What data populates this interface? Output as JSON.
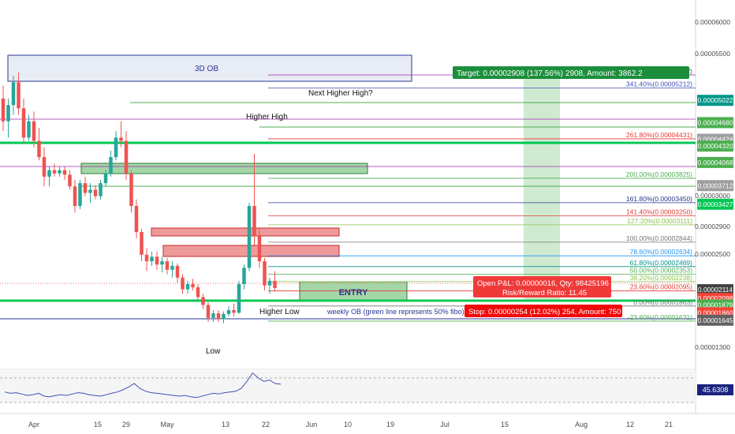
{
  "chart_data": {
    "type": "candlestick",
    "main_y_ticks": [
      "0.00006000",
      "0.00005500",
      "0.00003000",
      "0.00002900",
      "0.00002500",
      "0.00001300"
    ],
    "x_ticks": [
      "Apr",
      "15",
      "29",
      "May",
      "13",
      "22",
      "Jun",
      "10",
      "19",
      "Jul",
      "15",
      "Aug",
      "12",
      "21"
    ],
    "candles": [
      {
        "o": 5.05,
        "h": 5.25,
        "l": 4.55,
        "c": 4.7
      },
      {
        "o": 4.7,
        "h": 5.05,
        "l": 4.45,
        "c": 4.95
      },
      {
        "o": 4.95,
        "h": 5.4,
        "l": 4.8,
        "c": 5.3
      },
      {
        "o": 5.3,
        "h": 5.45,
        "l": 4.8,
        "c": 4.9
      },
      {
        "o": 4.9,
        "h": 5.05,
        "l": 4.35,
        "c": 4.45
      },
      {
        "o": 4.45,
        "h": 4.8,
        "l": 4.4,
        "c": 4.7
      },
      {
        "o": 4.7,
        "h": 4.85,
        "l": 4.3,
        "c": 4.4
      },
      {
        "o": 4.4,
        "h": 4.6,
        "l": 4.1,
        "c": 4.15
      },
      {
        "o": 4.15,
        "h": 4.3,
        "l": 3.7,
        "c": 3.85
      },
      {
        "o": 3.85,
        "h": 4.0,
        "l": 3.7,
        "c": 3.95
      },
      {
        "o": 3.95,
        "h": 4.05,
        "l": 3.85,
        "c": 3.9
      },
      {
        "o": 3.9,
        "h": 4.0,
        "l": 3.85,
        "c": 3.95
      },
      {
        "o": 3.95,
        "h": 4.0,
        "l": 3.8,
        "c": 3.88
      },
      {
        "o": 3.88,
        "h": 3.95,
        "l": 3.65,
        "c": 3.7
      },
      {
        "o": 3.7,
        "h": 3.8,
        "l": 3.3,
        "c": 3.4
      },
      {
        "o": 3.4,
        "h": 3.8,
        "l": 3.35,
        "c": 3.75
      },
      {
        "o": 3.75,
        "h": 3.85,
        "l": 3.55,
        "c": 3.6
      },
      {
        "o": 3.6,
        "h": 3.75,
        "l": 3.45,
        "c": 3.65
      },
      {
        "o": 3.65,
        "h": 3.72,
        "l": 3.5,
        "c": 3.55
      },
      {
        "o": 3.55,
        "h": 3.8,
        "l": 3.5,
        "c": 3.75
      },
      {
        "o": 3.75,
        "h": 3.95,
        "l": 3.7,
        "c": 3.9
      },
      {
        "o": 3.9,
        "h": 4.25,
        "l": 3.85,
        "c": 4.15
      },
      {
        "o": 4.15,
        "h": 4.55,
        "l": 4.1,
        "c": 4.45
      },
      {
        "o": 4.45,
        "h": 4.7,
        "l": 4.3,
        "c": 4.4
      },
      {
        "o": 4.4,
        "h": 4.55,
        "l": 3.8,
        "c": 3.9
      },
      {
        "o": 3.9,
        "h": 3.95,
        "l": 3.3,
        "c": 3.4
      },
      {
        "o": 3.4,
        "h": 3.5,
        "l": 2.9,
        "c": 3.0
      },
      {
        "o": 3.0,
        "h": 3.05,
        "l": 2.55,
        "c": 2.65
      },
      {
        "o": 2.65,
        "h": 2.75,
        "l": 2.4,
        "c": 2.55
      },
      {
        "o": 2.55,
        "h": 2.7,
        "l": 2.48,
        "c": 2.62
      },
      {
        "o": 2.62,
        "h": 2.7,
        "l": 2.42,
        "c": 2.5
      },
      {
        "o": 2.5,
        "h": 2.62,
        "l": 2.38,
        "c": 2.55
      },
      {
        "o": 2.55,
        "h": 2.6,
        "l": 2.35,
        "c": 2.42
      },
      {
        "o": 2.42,
        "h": 2.55,
        "l": 2.3,
        "c": 2.48
      },
      {
        "o": 2.48,
        "h": 2.52,
        "l": 2.22,
        "c": 2.3
      },
      {
        "o": 2.3,
        "h": 2.35,
        "l": 2.05,
        "c": 2.12
      },
      {
        "o": 2.12,
        "h": 2.25,
        "l": 2.05,
        "c": 2.2
      },
      {
        "o": 2.2,
        "h": 2.28,
        "l": 2.1,
        "c": 2.15
      },
      {
        "o": 2.15,
        "h": 2.2,
        "l": 1.95,
        "c": 2.0
      },
      {
        "o": 2.0,
        "h": 2.05,
        "l": 1.82,
        "c": 1.88
      },
      {
        "o": 1.88,
        "h": 1.92,
        "l": 1.62,
        "c": 1.68
      },
      {
        "o": 1.68,
        "h": 1.8,
        "l": 1.62,
        "c": 1.75
      },
      {
        "o": 1.75,
        "h": 1.8,
        "l": 1.62,
        "c": 1.66
      },
      {
        "o": 1.66,
        "h": 1.78,
        "l": 1.6,
        "c": 1.74
      },
      {
        "o": 1.74,
        "h": 1.86,
        "l": 1.7,
        "c": 1.8
      },
      {
        "o": 1.8,
        "h": 1.9,
        "l": 1.7,
        "c": 1.76
      },
      {
        "o": 1.76,
        "h": 2.25,
        "l": 1.74,
        "c": 2.2
      },
      {
        "o": 2.2,
        "h": 2.5,
        "l": 2.12,
        "c": 2.45
      },
      {
        "o": 2.45,
        "h": 3.45,
        "l": 2.4,
        "c": 3.4
      },
      {
        "o": 3.4,
        "h": 4.2,
        "l": 2.8,
        "c": 2.95
      },
      {
        "o": 2.95,
        "h": 3.05,
        "l": 2.45,
        "c": 2.55
      },
      {
        "o": 2.55,
        "h": 2.6,
        "l": 2.1,
        "c": 2.18
      },
      {
        "o": 2.18,
        "h": 2.3,
        "l": 2.05,
        "c": 2.25
      },
      {
        "o": 2.25,
        "h": 2.4,
        "l": 2.1,
        "c": 2.14
      }
    ],
    "fib_levels": [
      {
        "label": "361.80%(0.00005412)",
        "v": 5.412,
        "color": "#9c27b0"
      },
      {
        "label": "341.40%(0.00005212)",
        "v": 5.212,
        "color": "#3f51b5"
      },
      {
        "label": "261.80%(0.00004431)",
        "v": 4.431,
        "color": "#e53935"
      },
      {
        "label": "200.00%(0.00003825)",
        "v": 3.825,
        "color": "#4caf50"
      },
      {
        "label": "161.80%(0.00003450)",
        "v": 3.45,
        "color": "#283593"
      },
      {
        "label": "141.40%(0.00003250)",
        "v": 3.25,
        "color": "#e53935"
      },
      {
        "label": "127.20%(0.00003111)",
        "v": 3.111,
        "color": "#8bc34a"
      },
      {
        "label": "100.00%(0.00002844)",
        "v": 2.844,
        "color": "#757575"
      },
      {
        "label": "78.60%(0.00002634)",
        "v": 2.634,
        "color": "#2196f3"
      },
      {
        "label": "61.80%(0.00002469)",
        "v": 2.469,
        "color": "#009688"
      },
      {
        "label": "50.00%(0.00002353)",
        "v": 2.353,
        "color": "#4caf50"
      },
      {
        "label": "38.20%(0.00002238)",
        "v": 2.238,
        "color": "#8bc34a"
      },
      {
        "label": "23.60%(0.00002095)",
        "v": 2.095,
        "color": "#e53935"
      },
      {
        "label": "0.00%(0.00001863)",
        "v": 1.863,
        "color": "#757575"
      },
      {
        "label": "-23.60%(0.00001631)",
        "v": 1.631,
        "color": "#4caf50"
      }
    ],
    "price_tags": [
      {
        "text": "0.00005022",
        "v": 5.022,
        "bg": "#009688"
      },
      {
        "text": "0.00004680",
        "v": 4.68,
        "bg": "#4caf50"
      },
      {
        "text": "0.00004424",
        "v": 4.424,
        "bg": "#9e9e9e"
      },
      {
        "text": "0.00004320",
        "v": 4.32,
        "bg": "#4caf50"
      },
      {
        "text": "0.00004068",
        "v": 4.068,
        "bg": "#4caf50"
      },
      {
        "text": "0.00003712",
        "v": 3.712,
        "bg": "#9e9e9e"
      },
      {
        "text": "0.00003427",
        "v": 3.427,
        "bg": "#00c853"
      },
      {
        "text": "0.00002114",
        "v": 2.114,
        "bg": "#424242"
      },
      {
        "text": "0.00002098",
        "v": 1.98,
        "bg": "#f44336"
      },
      {
        "text": "0.00001879",
        "v": 1.879,
        "bg": "#4caf50"
      },
      {
        "text": "0.00001860",
        "v": 1.76,
        "bg": "#f44336"
      },
      {
        "text": "0.00001645",
        "v": 1.645,
        "bg": "#616161"
      }
    ],
    "annotations": {
      "ob_3d": "3D OB",
      "next_higher_high": "Next Higher High?",
      "higher_high": "Higher High",
      "higher_low": "Higher Low",
      "low": "Low",
      "entry": "ENTRY",
      "weekly_ob": "weekly OB (green line represents 50% fibo)",
      "target": "Target: 0.00002908 (137.56%) 2908, Amount: 3862.2",
      "open_pnl": "Open P&L: 0.00000016, Qty: 98425196",
      "risk_reward": "Risk/Reward Ratio: 11.45",
      "stop": "Stop: 0.00000254 (12.02%) 254, Amount: 750"
    },
    "indicator": {
      "value_label": "45.6308",
      "values": [
        35,
        33,
        34,
        32,
        30,
        31,
        33,
        29,
        28,
        30,
        31,
        30,
        32,
        34,
        33,
        31,
        30,
        29,
        31,
        33,
        35,
        38,
        42,
        47,
        40,
        36,
        34,
        33,
        32,
        31,
        30,
        29,
        30,
        28,
        27,
        29,
        31,
        33,
        32,
        34,
        35,
        36,
        40,
        50,
        62,
        55,
        50,
        52,
        47,
        46
      ]
    },
    "colors": {
      "up": "#26a69a",
      "down": "#ef5350",
      "accent_green": "#00c853",
      "zone_green": "#a5d6a7",
      "zone_red": "#ef9a9a",
      "ob_blue": "#e3e8f3"
    }
  }
}
